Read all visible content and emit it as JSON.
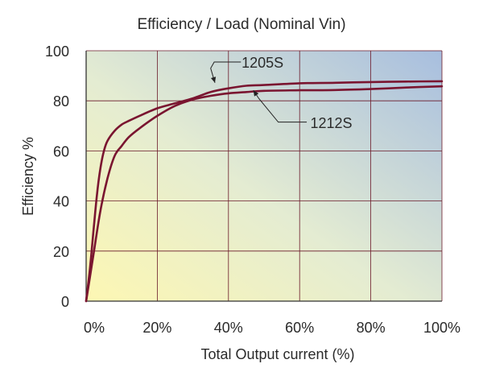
{
  "chart_data": {
    "type": "line",
    "title": "Efficiency / Load (Nominal Vin)",
    "xlabel": "Total Output current (%)",
    "ylabel": "Efficiency %",
    "xlim": [
      0,
      100
    ],
    "ylim": [
      0,
      100
    ],
    "x_ticks": [
      0,
      20,
      40,
      60,
      80,
      100
    ],
    "x_tick_labels": [
      "0%",
      "20%",
      "40%",
      "60%",
      "80%",
      "100%"
    ],
    "y_ticks": [
      0,
      20,
      40,
      60,
      80,
      100
    ],
    "y_tick_labels": [
      "0",
      "20",
      "40",
      "60",
      "80",
      "100"
    ],
    "grid": true,
    "background": "gradient pale yellow (bottom-left) to light blue (top-right)",
    "colors": {
      "line": "#7a1530",
      "grid": "#6b1a2a",
      "axis": "#333333"
    },
    "series": [
      {
        "name": "1205S",
        "x": [
          0,
          1,
          2,
          3,
          4,
          5,
          6,
          8,
          10,
          12,
          15,
          20,
          25,
          30,
          35,
          40,
          45,
          50,
          60,
          70,
          80,
          90,
          100
        ],
        "y": [
          0,
          12,
          27,
          42,
          53,
          60,
          64,
          68,
          70.5,
          72,
          74,
          77,
          79,
          81,
          83.5,
          85,
          86,
          86.3,
          87,
          87.2,
          87.5,
          87.7,
          87.8
        ]
      },
      {
        "name": "1212S",
        "x": [
          0,
          2,
          4,
          6,
          8,
          10,
          12,
          15,
          20,
          25,
          30,
          35,
          40,
          45,
          50,
          60,
          70,
          80,
          90,
          100
        ],
        "y": [
          0,
          18,
          36,
          49,
          58,
          62,
          65.5,
          69,
          74,
          78,
          80.5,
          82,
          83,
          83.5,
          84,
          84.2,
          84.3,
          84.7,
          85.3,
          85.8
        ]
      }
    ],
    "annotations": [
      "1205S",
      "1212S"
    ]
  }
}
